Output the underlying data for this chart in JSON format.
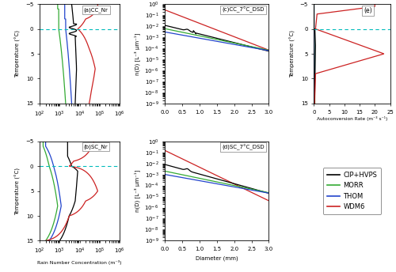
{
  "colors": {
    "black": "#000000",
    "green": "#33AA33",
    "blue": "#2244CC",
    "red": "#CC2222",
    "cyan_dashed": "#00BBBB"
  },
  "legend_labels": [
    "CIP+HVPS",
    "MORR",
    "THOM",
    "WDM6"
  ],
  "subplot_labels": [
    "(a)CC_Nr",
    "(b)SC_Nr",
    "(c)CC_7°C_DSD",
    "(d)SC_7°C_DSD",
    "(e)"
  ],
  "xlabel_ab": "Rain Number Concentration (m⁻³)",
  "xlabel_cd": "Diameter (mm)",
  "xlabel_e": "Autoconversion Rate (m⁻³ s⁻¹)",
  "ylabel_ab": "Temperature (°C)",
  "ylabel_cd": "n(D) [L⁻³ μm⁻¹]",
  "ylabel_e": "Temperature (°C)",
  "xlim_ab": [
    100,
    1000000
  ],
  "xlim_cd": [
    0.0,
    3.0
  ],
  "xlim_e": [
    0,
    25
  ],
  "ylim_ab": [
    15,
    -5
  ],
  "ylim_cd_log": [
    1e-09,
    1.0
  ],
  "ylim_e": [
    15,
    -5
  ],
  "yticks_ab": [
    -5,
    0,
    5,
    10,
    15
  ],
  "xticks_e": [
    0,
    5,
    10,
    15,
    20,
    25
  ],
  "background_color": "#ffffff"
}
